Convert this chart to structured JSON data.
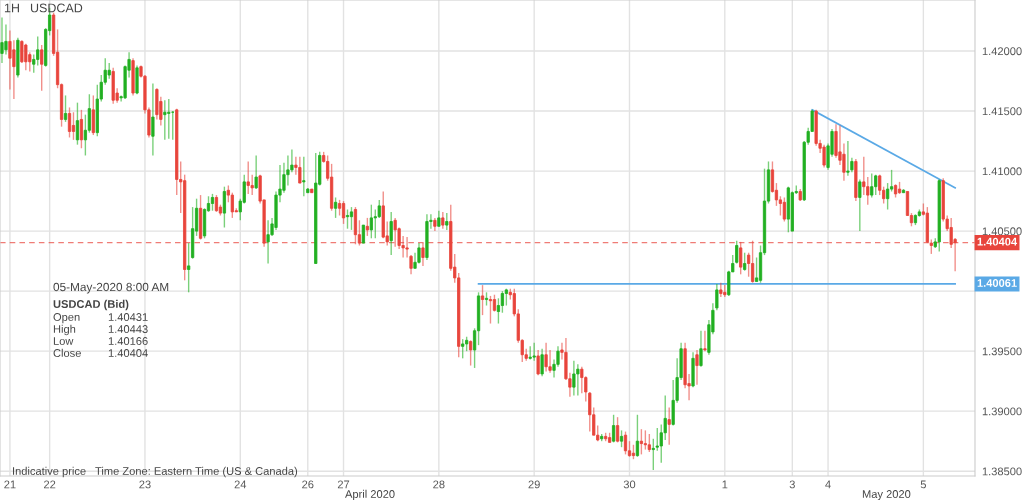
{
  "chart_data": {
    "type": "candlestick",
    "title": "1H",
    "subtitle": "USDCAD",
    "ylim": [
      1.3846,
      1.42425
    ],
    "categories": [
      null,
      null,
      "21",
      null,
      null,
      null,
      null,
      null,
      null,
      null,
      null,
      null,
      "22",
      null,
      null,
      null,
      null,
      null,
      null,
      null,
      null,
      null,
      null,
      null,
      null,
      null,
      null,
      null,
      null,
      null,
      null,
      null,
      null,
      null,
      null,
      null,
      "23",
      null,
      null,
      null,
      null,
      null,
      null,
      null,
      null,
      null,
      null,
      null,
      null,
      null,
      null,
      null,
      null,
      null,
      null,
      null,
      null,
      null,
      null,
      null,
      "24",
      null,
      null,
      null,
      null,
      null,
      null,
      null,
      null,
      null,
      null,
      null,
      null,
      null,
      null,
      null,
      null,
      "26",
      null,
      null,
      null,
      null,
      null,
      null,
      null,
      null,
      "27",
      null,
      null,
      null,
      null,
      null,
      null,
      null,
      null,
      null,
      null,
      null,
      null,
      null,
      null,
      null,
      null,
      null,
      null,
      null,
      null,
      null,
      null,
      null,
      "28",
      null,
      null,
      null,
      null,
      null,
      null,
      null,
      null,
      null,
      null,
      null,
      null,
      null,
      null,
      null,
      null,
      null,
      null,
      null,
      null,
      null,
      null,
      null,
      "29",
      null,
      null,
      null,
      null,
      null,
      null,
      null,
      null,
      null,
      null,
      null,
      null,
      null,
      null,
      null,
      null,
      null,
      null,
      null,
      null,
      null,
      null,
      null,
      "30",
      null,
      null,
      null,
      null,
      null,
      null,
      null,
      null,
      null,
      null,
      null,
      null,
      null,
      null,
      null,
      null,
      null,
      null,
      null,
      null,
      null,
      null,
      null,
      "1",
      null,
      null,
      null,
      null,
      null,
      null,
      null,
      null,
      null,
      null,
      null,
      null,
      null,
      null,
      null,
      null,
      "3",
      null,
      null,
      null,
      null,
      null,
      null,
      null,
      null,
      "4",
      null,
      null,
      null,
      null,
      null,
      null,
      null,
      null,
      null,
      null,
      null,
      null,
      null,
      null,
      null,
      null,
      null,
      null,
      null,
      null,
      null,
      null,
      null,
      "5",
      null,
      null,
      null,
      null,
      null,
      null,
      null,
      null
    ],
    "yticks": [
      {
        "value": 1.385,
        "label": "1.38500"
      },
      {
        "value": 1.39,
        "label": "1.39000"
      },
      {
        "value": 1.395,
        "label": "1.39500"
      },
      {
        "value": 1.4,
        "label": null
      },
      {
        "value": 1.405,
        "label": "1.40500"
      },
      {
        "value": 1.41,
        "label": "1.41000"
      },
      {
        "value": 1.415,
        "label": "1.41500"
      },
      {
        "value": 1.42,
        "label": "1.42000"
      }
    ],
    "grid": true,
    "legend": false,
    "series": [
      {
        "ohlc": [
          [
            1.4198,
            1.4228,
            1.419,
            1.4207
          ],
          [
            1.4201,
            1.4222,
            1.4197,
            1.4208
          ],
          [
            1.4208,
            1.4217,
            1.4168,
            1.4194
          ],
          [
            1.4201,
            1.4209,
            1.416,
            1.4187
          ],
          [
            1.418,
            1.4211,
            1.4178,
            1.4209
          ],
          [
            1.4208,
            1.4209,
            1.419,
            1.4191
          ],
          [
            1.4205,
            1.4206,
            1.4184,
            1.4191
          ],
          [
            1.4197,
            1.4199,
            1.4183,
            1.4191
          ],
          [
            1.4189,
            1.4197,
            1.4182,
            1.4193
          ],
          [
            1.4193,
            1.4212,
            1.4188,
            1.4201
          ],
          [
            1.4201,
            1.4205,
            1.4167,
            1.4189
          ],
          [
            1.4188,
            1.4219,
            1.4187,
            1.4218
          ],
          [
            1.4217,
            1.4236,
            1.4213,
            1.423
          ],
          [
            1.423,
            1.4232,
            1.4196,
            1.4198
          ],
          [
            1.4199,
            1.4218,
            1.4169,
            1.4172
          ],
          [
            1.4172,
            1.4173,
            1.4137,
            1.4143
          ],
          [
            1.4143,
            1.4163,
            1.4141,
            1.4148
          ],
          [
            1.4148,
            1.4153,
            1.4128,
            1.4133
          ],
          [
            1.4138,
            1.4149,
            1.4126,
            1.4133
          ],
          [
            1.4126,
            1.4157,
            1.4122,
            1.4142
          ],
          [
            1.4143,
            1.4151,
            1.4119,
            1.4126
          ],
          [
            1.4126,
            1.4147,
            1.4113,
            1.4134
          ],
          [
            1.4134,
            1.4164,
            1.4132,
            1.4152
          ],
          [
            1.4151,
            1.4163,
            1.413,
            1.4132
          ],
          [
            1.4132,
            1.4172,
            1.4129,
            1.416
          ],
          [
            1.416,
            1.418,
            1.4158,
            1.4174
          ],
          [
            1.4174,
            1.4194,
            1.4172,
            1.4184
          ],
          [
            1.418,
            1.419,
            1.4177,
            1.4184
          ],
          [
            1.4183,
            1.4186,
            1.4156,
            1.4159
          ],
          [
            1.4165,
            1.4169,
            1.4157,
            1.4159
          ],
          [
            1.4161,
            1.4163,
            1.4158,
            1.4162
          ],
          [
            1.4161,
            1.4188,
            1.416,
            1.4187
          ],
          [
            1.4184,
            1.4199,
            1.4178,
            1.4193
          ],
          [
            1.4192,
            1.4194,
            1.4163,
            1.4165
          ],
          [
            1.4165,
            1.4188,
            1.4164,
            1.4186
          ],
          [
            1.4187,
            1.4188,
            1.4178,
            1.4179
          ],
          [
            1.4179,
            1.418,
            1.4148,
            1.4151
          ],
          [
            1.4151,
            1.4153,
            1.4128,
            1.413
          ],
          [
            1.4129,
            1.4173,
            1.4113,
            1.4145
          ],
          [
            1.4168,
            1.4169,
            1.4143,
            1.4147
          ],
          [
            1.4158,
            1.4162,
            1.4138,
            1.4143
          ],
          [
            1.4147,
            1.4159,
            1.4126,
            1.4149
          ],
          [
            1.4148,
            1.416,
            1.4127,
            1.4149
          ],
          [
            1.4149,
            1.415,
            1.4126,
            1.4149
          ],
          [
            1.4151,
            1.4152,
            1.408,
            1.4093
          ],
          [
            1.4093,
            1.4108,
            1.4065,
            1.4091
          ],
          [
            1.4092,
            1.4097,
            1.4009,
            1.4018
          ],
          [
            1.4018,
            1.404,
            1.3999,
            1.4021
          ],
          [
            1.4028,
            1.407,
            1.4027,
            1.4052
          ],
          [
            1.405,
            1.4077,
            1.4046,
            1.4069
          ],
          [
            1.4069,
            1.408,
            1.4043,
            1.4044
          ],
          [
            1.4046,
            1.4069,
            1.4044,
            1.4068
          ],
          [
            1.4067,
            1.4079,
            1.4066,
            1.4073
          ],
          [
            1.4073,
            1.4081,
            1.4067,
            1.4078
          ],
          [
            1.4078,
            1.408,
            1.4066,
            1.4067
          ],
          [
            1.407,
            1.4072,
            1.4063,
            1.4065
          ],
          [
            1.4065,
            1.4087,
            1.4053,
            1.4083
          ],
          [
            1.4084,
            1.4088,
            1.4074,
            1.408
          ],
          [
            1.408,
            1.4082,
            1.4061,
            1.4066
          ],
          [
            1.4067,
            1.4069,
            1.4066,
            1.4066
          ],
          [
            1.4066,
            1.4077,
            1.4059,
            1.4075
          ],
          [
            1.4074,
            1.4097,
            1.4073,
            1.4091
          ],
          [
            1.4091,
            1.4108,
            1.4081,
            1.4088
          ],
          [
            1.4088,
            1.4097,
            1.408,
            1.4086
          ],
          [
            1.4086,
            1.4113,
            1.4085,
            1.4095
          ],
          [
            1.4096,
            1.4097,
            1.4073,
            1.4075
          ],
          [
            1.4076,
            1.4076,
            1.4037,
            1.404
          ],
          [
            1.4041,
            1.4059,
            1.4023,
            1.4047
          ],
          [
            1.4047,
            1.4061,
            1.4046,
            1.4056
          ],
          [
            1.4053,
            1.4083,
            1.4051,
            1.408
          ],
          [
            1.408,
            1.4105,
            1.4074,
            1.4085
          ],
          [
            1.4084,
            1.4107,
            1.4082,
            1.4097
          ],
          [
            1.4097,
            1.4113,
            1.4088,
            1.4101
          ],
          [
            1.4101,
            1.4118,
            1.4099,
            1.4105
          ],
          [
            1.4105,
            1.4112,
            1.4097,
            1.4103
          ],
          [
            1.4103,
            1.4112,
            1.409,
            1.409
          ],
          [
            1.4091,
            1.4112,
            1.4079,
            1.4092
          ],
          [
            1.4082,
            1.4086,
            1.4082,
            1.4085
          ],
          [
            1.4085,
            1.4085,
            1.4082,
            1.4082
          ],
          [
            1.4023,
            1.4115,
            1.4023,
            1.409
          ],
          [
            1.4089,
            1.4116,
            1.4088,
            1.4113
          ],
          [
            1.4113,
            1.4116,
            1.4107,
            1.4108
          ],
          [
            1.4108,
            1.4113,
            1.4092,
            1.4094
          ],
          [
            1.4095,
            1.4106,
            1.4067,
            1.4069
          ],
          [
            1.4069,
            1.4078,
            1.4061,
            1.4074
          ],
          [
            1.4073,
            1.4076,
            1.4063,
            1.4069
          ],
          [
            1.4073,
            1.4075,
            1.4056,
            1.4061
          ],
          [
            1.4062,
            1.4068,
            1.4052,
            1.4063
          ],
          [
            1.4062,
            1.407,
            1.4051,
            1.4066
          ],
          [
            1.4068,
            1.407,
            1.4039,
            1.4047
          ],
          [
            1.4047,
            1.4059,
            1.4038,
            1.404
          ],
          [
            1.404,
            1.4055,
            1.404,
            1.4055
          ],
          [
            1.4054,
            1.4061,
            1.4046,
            1.4051
          ],
          [
            1.4051,
            1.4072,
            1.4044,
            1.4061
          ],
          [
            1.4061,
            1.4068,
            1.4044,
            1.4062
          ],
          [
            1.4062,
            1.4076,
            1.4061,
            1.4071
          ],
          [
            1.4071,
            1.4083,
            1.4044,
            1.4045
          ],
          [
            1.4046,
            1.4058,
            1.4038,
            1.4041
          ],
          [
            1.4042,
            1.4066,
            1.403,
            1.4058
          ],
          [
            1.4059,
            1.4061,
            1.4037,
            1.4051
          ],
          [
            1.4052,
            1.4053,
            1.4035,
            1.4038
          ],
          [
            1.4038,
            1.4046,
            1.4028,
            1.4036
          ],
          [
            1.4036,
            1.4045,
            1.4028,
            1.4035
          ],
          [
            1.4029,
            1.403,
            1.4014,
            1.4019
          ],
          [
            1.4019,
            1.4032,
            1.4019,
            1.4024
          ],
          [
            1.4024,
            1.404,
            1.4023,
            1.4036
          ],
          [
            1.4036,
            1.404,
            1.4021,
            1.4028
          ],
          [
            1.4028,
            1.4064,
            1.4026,
            1.4058
          ],
          [
            1.4058,
            1.4064,
            1.4052,
            1.4059
          ],
          [
            1.4059,
            1.4061,
            1.405,
            1.4054
          ],
          [
            1.4054,
            1.4067,
            1.4054,
            1.4061
          ],
          [
            1.4061,
            1.4066,
            1.4052,
            1.4055
          ],
          [
            1.4055,
            1.4065,
            1.4051,
            1.4058
          ],
          [
            1.4058,
            1.4072,
            1.4017,
            1.4019
          ],
          [
            1.402,
            1.4031,
            1.4007,
            1.4011
          ],
          [
            1.4011,
            1.4015,
            1.3945,
            1.3954
          ],
          [
            1.3954,
            1.396,
            1.3944,
            1.3956
          ],
          [
            1.3956,
            1.3962,
            1.395,
            1.3959
          ],
          [
            1.3958,
            1.3959,
            1.3938,
            1.3951
          ],
          [
            1.3951,
            1.3969,
            1.3936,
            1.3967
          ],
          [
            1.3967,
            1.3999,
            1.3955,
            1.3996
          ],
          [
            1.3996,
            1.4005,
            1.398,
            1.3993
          ],
          [
            1.3993,
            1.3999,
            1.3988,
            1.3994
          ],
          [
            1.3993,
            1.3996,
            1.3973,
            1.3992
          ],
          [
            1.3993,
            1.3997,
            1.3983,
            1.3984
          ],
          [
            1.3983,
            1.3994,
            1.3973,
            1.3988
          ],
          [
            1.3988,
            1.4,
            1.3982,
            1.3998
          ],
          [
            1.3998,
            1.4002,
            1.3988,
            1.4001
          ],
          [
            1.3999,
            1.4002,
            1.3993,
            1.3997
          ],
          [
            1.3998,
            1.4002,
            1.3979,
            1.3981
          ],
          [
            1.3981,
            1.3985,
            1.3957,
            1.3959
          ],
          [
            1.3959,
            1.396,
            1.3941,
            1.3947
          ],
          [
            1.3947,
            1.3952,
            1.3942,
            1.3944
          ],
          [
            1.3944,
            1.3954,
            1.3943,
            1.3945
          ],
          [
            1.3945,
            1.3957,
            1.3942,
            1.3946
          ],
          [
            1.3946,
            1.3951,
            1.393,
            1.3931
          ],
          [
            1.3931,
            1.3952,
            1.3929,
            1.3947
          ],
          [
            1.3947,
            1.3957,
            1.3933,
            1.3937
          ],
          [
            1.3937,
            1.3951,
            1.3932,
            1.3934
          ],
          [
            1.3934,
            1.3943,
            1.3928,
            1.3939
          ],
          [
            1.3939,
            1.3954,
            1.3937,
            1.395
          ],
          [
            1.3951,
            1.3957,
            1.3943,
            1.3949
          ],
          [
            1.3949,
            1.3961,
            1.3926,
            1.3927
          ],
          [
            1.3927,
            1.3932,
            1.3912,
            1.392
          ],
          [
            1.392,
            1.3942,
            1.3913,
            1.3931
          ],
          [
            1.3931,
            1.3939,
            1.3913,
            1.3935
          ],
          [
            1.3935,
            1.3937,
            1.3915,
            1.3928
          ],
          [
            1.3928,
            1.3929,
            1.3908,
            1.3916
          ],
          [
            1.3915,
            1.3916,
            1.3883,
            1.3897
          ],
          [
            1.3897,
            1.3903,
            1.388,
            1.388
          ],
          [
            1.388,
            1.3888,
            1.3875,
            1.3876
          ],
          [
            1.3877,
            1.3881,
            1.3875,
            1.3879
          ],
          [
            1.3879,
            1.3882,
            1.3875,
            1.3877
          ],
          [
            1.3878,
            1.3882,
            1.3874,
            1.3874
          ],
          [
            1.3875,
            1.3897,
            1.3874,
            1.3888
          ],
          [
            1.3888,
            1.3895,
            1.3874,
            1.3875
          ],
          [
            1.3875,
            1.3884,
            1.387,
            1.3879
          ],
          [
            1.388,
            1.3883,
            1.3864,
            1.3867
          ],
          [
            1.3867,
            1.3875,
            1.3862,
            1.3863
          ],
          [
            1.3865,
            1.3872,
            1.386,
            1.3863
          ],
          [
            1.3863,
            1.3897,
            1.3862,
            1.3875
          ],
          [
            1.3875,
            1.3885,
            1.3864,
            1.3873
          ],
          [
            1.3873,
            1.3884,
            1.3868,
            1.3872
          ],
          [
            1.3872,
            1.3881,
            1.3866,
            1.3868
          ],
          [
            1.3868,
            1.3877,
            1.3851,
            1.3869
          ],
          [
            1.387,
            1.3886,
            1.3867,
            1.3871
          ],
          [
            1.3871,
            1.3889,
            1.3857,
            1.3882
          ],
          [
            1.3882,
            1.3913,
            1.3876,
            1.3894
          ],
          [
            1.3893,
            1.3903,
            1.3872,
            1.3889
          ],
          [
            1.3889,
            1.3926,
            1.3888,
            1.3909
          ],
          [
            1.3909,
            1.3944,
            1.3907,
            1.3928
          ],
          [
            1.3928,
            1.3957,
            1.3926,
            1.3952
          ],
          [
            1.3952,
            1.3957,
            1.3919,
            1.3922
          ],
          [
            1.3923,
            1.3931,
            1.3909,
            1.3921
          ],
          [
            1.3921,
            1.3949,
            1.392,
            1.3944
          ],
          [
            1.3947,
            1.3951,
            1.3922,
            1.3938
          ],
          [
            1.3938,
            1.3967,
            1.3937,
            1.3952
          ],
          [
            1.3952,
            1.3967,
            1.395,
            1.3951
          ],
          [
            1.3949,
            1.3976,
            1.3947,
            1.3972
          ],
          [
            1.3966,
            1.399,
            1.3964,
            1.3984
          ],
          [
            1.3986,
            1.4006,
            1.3984,
            1.4001
          ],
          [
            1.4001,
            1.4007,
            1.3995,
            1.3998
          ],
          [
            1.3999,
            1.4005,
            1.3995,
            1.3997
          ],
          [
            1.3997,
            1.4017,
            1.3996,
            1.4016
          ],
          [
            1.4016,
            1.403,
            1.4016,
            1.4023
          ],
          [
            1.4024,
            1.4042,
            1.4023,
            1.4038
          ],
          [
            1.4036,
            1.4041,
            1.4014,
            1.402
          ],
          [
            1.4018,
            1.4032,
            1.4017,
            1.4023
          ],
          [
            1.403,
            1.4032,
            1.4012,
            1.4023
          ],
          [
            1.4023,
            1.4042,
            1.4007,
            1.4008
          ],
          [
            1.4008,
            1.4028,
            1.4008,
            1.4011
          ],
          [
            1.4009,
            1.4038,
            1.4007,
            1.4032
          ],
          [
            1.4032,
            1.4102,
            1.403,
            1.4075
          ],
          [
            1.4075,
            1.4108,
            1.4073,
            1.4101
          ],
          [
            1.4101,
            1.4108,
            1.4082,
            1.4083
          ],
          [
            1.4084,
            1.409,
            1.4071,
            1.4076
          ],
          [
            1.4076,
            1.4079,
            1.4063,
            1.4073
          ],
          [
            1.4074,
            1.4078,
            1.4058,
            1.406
          ],
          [
            1.406,
            1.4087,
            1.4049,
            1.4086
          ],
          [
            1.405,
            1.4083,
            1.405,
            1.4082
          ],
          [
            1.4082,
            1.4088,
            1.4081,
            1.4083
          ],
          [
            1.4083,
            1.4085,
            1.4075,
            1.4076
          ],
          [
            1.4076,
            1.4125,
            1.4075,
            1.4124
          ],
          [
            1.4124,
            1.4136,
            1.4122,
            1.4133
          ],
          [
            1.4133,
            1.4151,
            1.4133,
            1.415
          ],
          [
            1.415,
            1.4151,
            1.4121,
            1.4123
          ],
          [
            1.4123,
            1.4126,
            1.4115,
            1.4119
          ],
          [
            1.412,
            1.4122,
            1.4103,
            1.4105
          ],
          [
            1.4103,
            1.4123,
            1.4101,
            1.4121
          ],
          [
            1.4114,
            1.4135,
            1.4112,
            1.4133
          ],
          [
            1.4133,
            1.4139,
            1.4111,
            1.4113
          ],
          [
            1.4116,
            1.4138,
            1.4105,
            1.4109
          ],
          [
            1.4114,
            1.4123,
            1.4092,
            1.4099
          ],
          [
            1.4099,
            1.4125,
            1.4096,
            1.41
          ],
          [
            1.4101,
            1.4111,
            1.4099,
            1.4108
          ],
          [
            1.4108,
            1.411,
            1.4075,
            1.4078
          ],
          [
            1.4078,
            1.4093,
            1.405,
            1.4091
          ],
          [
            1.4091,
            1.4112,
            1.408,
            1.4087
          ],
          [
            1.4087,
            1.4095,
            1.4072,
            1.408
          ],
          [
            1.408,
            1.4098,
            1.4078,
            1.4087
          ],
          [
            1.4087,
            1.4097,
            1.408,
            1.4096
          ],
          [
            1.4096,
            1.4097,
            1.408,
            1.4084
          ],
          [
            1.4084,
            1.4087,
            1.4073,
            1.4077
          ],
          [
            1.4077,
            1.409,
            1.4068,
            1.4085
          ],
          [
            1.4085,
            1.4101,
            1.4083,
            1.4087
          ],
          [
            1.4088,
            1.4089,
            1.4078,
            1.4081
          ],
          [
            1.4085,
            1.4091,
            1.4081,
            1.4082
          ],
          [
            1.4082,
            1.4085,
            1.4082,
            1.4084
          ],
          [
            1.4083,
            1.4083,
            1.4063,
            1.4063
          ],
          [
            1.4063,
            1.4065,
            1.4054,
            1.4057
          ],
          [
            1.4057,
            1.4064,
            1.4055,
            1.4063
          ],
          [
            1.4063,
            1.4068,
            1.4062,
            1.4066
          ],
          [
            1.4066,
            1.4073,
            1.4063,
            1.4064
          ],
          [
            1.4065,
            1.407,
            1.404,
            1.4041
          ],
          [
            1.404,
            1.4043,
            1.4031,
            1.4038
          ],
          [
            1.4037,
            1.4044,
            1.4036,
            1.4041
          ],
          [
            1.4041,
            1.4093,
            1.4033,
            1.4092
          ],
          [
            1.4092,
            1.4094,
            1.4058,
            1.406
          ],
          [
            1.406,
            1.4063,
            1.405,
            1.4052
          ],
          [
            1.4053,
            1.4061,
            1.4036,
            1.4039
          ],
          [
            1.40431,
            1.40443,
            1.40166,
            1.40404
          ]
        ]
      },
      {
        "type": "line",
        "color": "#5aa9e6",
        "values": [
          null,
          null,
          null,
          null,
          null,
          null,
          null,
          null,
          null,
          null,
          null,
          null,
          null,
          null,
          null,
          null,
          null,
          null,
          null,
          null,
          null,
          null,
          null,
          null,
          null,
          null,
          null,
          null,
          null,
          null,
          null,
          null,
          null,
          null,
          null,
          null,
          null,
          null,
          null,
          null,
          null,
          null,
          null,
          null,
          null,
          null,
          null,
          null,
          null,
          null,
          null,
          null,
          null,
          null,
          null,
          null,
          null,
          null,
          null,
          null,
          null,
          null,
          null,
          null,
          null,
          null,
          null,
          null,
          null,
          null,
          null,
          null,
          null,
          null,
          null,
          null,
          null,
          null,
          null,
          null,
          null,
          null,
          null,
          null,
          null,
          null,
          null,
          null,
          null,
          null,
          null,
          null,
          null,
          null,
          null,
          null,
          null,
          null,
          null,
          null,
          null,
          null,
          null,
          null,
          null,
          null,
          null,
          null,
          null,
          null,
          null,
          null,
          null,
          null,
          null,
          null,
          null,
          null,
          null,
          null,
          1.4006,
          null,
          null,
          null,
          null,
          null,
          null,
          null,
          null,
          null,
          null,
          null,
          null,
          null,
          null,
          null,
          null,
          null,
          null,
          null,
          null,
          null,
          null,
          null,
          null,
          null,
          null,
          null,
          null,
          null,
          null,
          null,
          null,
          null,
          null,
          null,
          null,
          null,
          null,
          null,
          null,
          null,
          null,
          null,
          null,
          null,
          null,
          null,
          null,
          null,
          null,
          null,
          null,
          null,
          null,
          null,
          null,
          null,
          null,
          null,
          null,
          null,
          null,
          null,
          null,
          null,
          null,
          null,
          null,
          null,
          null,
          null,
          null,
          null,
          null,
          null,
          null,
          null,
          null,
          null,
          null,
          null,
          null,
          null,
          null,
          null,
          null,
          null,
          null,
          null,
          null,
          null,
          null,
          null,
          null,
          null,
          null,
          null,
          null,
          null,
          null,
          null,
          null,
          null,
          null,
          null,
          null,
          null,
          null,
          null,
          null,
          null,
          null,
          null,
          null,
          null,
          null,
          null,
          null,
          null,
          1.4006
        ]
      },
      {
        "type": "line",
        "color": "#5aa9e6",
        "values": [
          null,
          null,
          null,
          null,
          null,
          null,
          null,
          null,
          null,
          null,
          null,
          null,
          null,
          null,
          null,
          null,
          null,
          null,
          null,
          null,
          null,
          null,
          null,
          null,
          null,
          null,
          null,
          null,
          null,
          null,
          null,
          null,
          null,
          null,
          null,
          null,
          null,
          null,
          null,
          null,
          null,
          null,
          null,
          null,
          null,
          null,
          null,
          null,
          null,
          null,
          null,
          null,
          null,
          null,
          null,
          null,
          null,
          null,
          null,
          null,
          null,
          null,
          null,
          null,
          null,
          null,
          null,
          null,
          null,
          null,
          null,
          null,
          null,
          null,
          null,
          null,
          null,
          null,
          null,
          null,
          null,
          null,
          null,
          null,
          null,
          null,
          null,
          null,
          null,
          null,
          null,
          null,
          null,
          null,
          null,
          null,
          null,
          null,
          null,
          null,
          null,
          null,
          null,
          null,
          null,
          null,
          null,
          null,
          null,
          null,
          null,
          null,
          null,
          null,
          null,
          null,
          null,
          null,
          null,
          null,
          null,
          null,
          null,
          null,
          null,
          null,
          null,
          null,
          null,
          null,
          null,
          null,
          null,
          null,
          null,
          null,
          null,
          null,
          null,
          null,
          null,
          null,
          null,
          null,
          null,
          null,
          null,
          null,
          null,
          null,
          null,
          null,
          null,
          null,
          null,
          null,
          null,
          null,
          null,
          null,
          null,
          null,
          null,
          null,
          null,
          null,
          null,
          null,
          null,
          null,
          null,
          null,
          null,
          null,
          null,
          null,
          null,
          null,
          null,
          null,
          null,
          null,
          null,
          null,
          null,
          null,
          null,
          null,
          null,
          null,
          null,
          null,
          null,
          null,
          null,
          null,
          null,
          null,
          null,
          null,
          null,
          null,
          null,
          null,
          1.4151,
          null,
          null,
          null,
          null,
          null,
          null,
          null,
          null,
          null,
          null,
          null,
          null,
          null,
          null,
          null,
          null,
          null,
          null,
          null,
          null,
          null,
          null,
          null,
          null,
          null,
          null,
          null,
          null,
          null,
          null,
          null,
          null,
          null,
          null,
          null,
          1.4086
        ]
      }
    ],
    "ref_lines": [
      {
        "axis": "y",
        "value": 1.40404,
        "label": "1.40404",
        "color": "#e8453c",
        "line_style": "dashed"
      }
    ],
    "annotations": [
      "1.40061",
      "05-May-2020 8:00 AM",
      "USDCAD (Bid)",
      "Open",
      "1.40431",
      "High",
      "1.40443",
      "Low",
      "1.40166",
      "Close",
      "1.40404",
      "Indicative price",
      "Time Zone: Eastern Time (US & Canada)",
      "April 2020",
      "May 2020"
    ]
  }
}
